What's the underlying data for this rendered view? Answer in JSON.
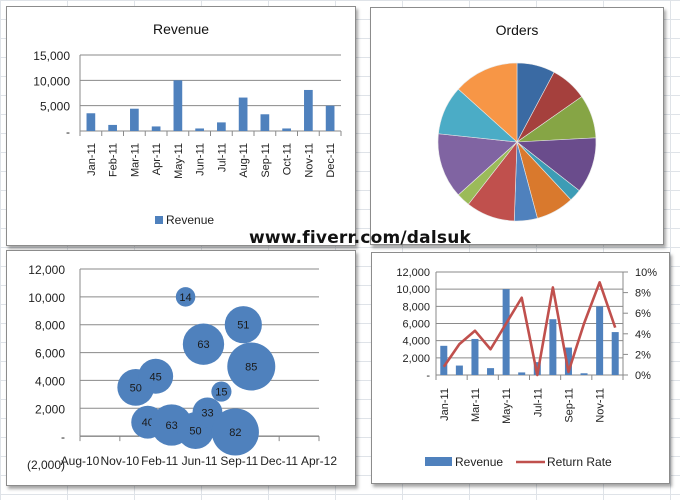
{
  "watermark": "www.fiverr.com/dalsuk",
  "colors": {
    "bar": "#4f81bd",
    "line": "#c0504d",
    "grid": "#8a8a8a"
  },
  "chart_data": [
    {
      "id": "revenue",
      "type": "bar",
      "title": "Revenue",
      "categories": [
        "Jan-11",
        "Feb-11",
        "Mar-11",
        "Apr-11",
        "May-11",
        "Jun-11",
        "Jul-11",
        "Aug-11",
        "Sep-11",
        "Oct-11",
        "Nov-11",
        "Dec-11"
      ],
      "series": [
        {
          "name": "Revenue",
          "values": [
            3500,
            1200,
            4400,
            900,
            10000,
            500,
            1700,
            6600,
            3300,
            500,
            8100,
            5000
          ]
        }
      ],
      "ylim": [
        0,
        15000
      ],
      "yticks": [
        "-",
        "5,000",
        "10,000",
        "15,000"
      ],
      "xlabel": "",
      "ylabel": "",
      "grid": true,
      "legend": {
        "position": "bottom",
        "entries": [
          "Revenue"
        ]
      }
    },
    {
      "id": "orders",
      "type": "pie",
      "title": "Orders",
      "slices": [
        {
          "value": 28,
          "color": "#3a6aa3"
        },
        {
          "value": 27,
          "color": "#a5403d"
        },
        {
          "value": 32,
          "color": "#86a545"
        },
        {
          "value": 41,
          "color": "#6a4c8c"
        },
        {
          "value": 9,
          "color": "#3d9cb5"
        },
        {
          "value": 28,
          "color": "#d9792d"
        },
        {
          "value": 17,
          "color": "#4f81bd"
        },
        {
          "value": 36,
          "color": "#c0504d"
        },
        {
          "value": 10,
          "color": "#9bbb59"
        },
        {
          "value": 48,
          "color": "#8064a2"
        },
        {
          "value": 36,
          "color": "#4bacc6"
        },
        {
          "value": 48,
          "color": "#f79646"
        }
      ],
      "legend": null
    },
    {
      "id": "bubble",
      "type": "scatter",
      "subtype": "bubble",
      "title": "",
      "xticks": [
        "Aug-10",
        "Nov-10",
        "Feb-11",
        "Jun-11",
        "Sep-11",
        "Dec-11",
        "Apr-12"
      ],
      "yticks": [
        "(2,000)",
        "-",
        "2,000",
        "4,000",
        "6,000",
        "8,000",
        "10,000",
        "12,000"
      ],
      "ylim": [
        -2000,
        12000
      ],
      "points": [
        {
          "x": 1.4,
          "y": 3500,
          "size": 50
        },
        {
          "x": 1.9,
          "y": 4300,
          "size": 45
        },
        {
          "x": 1.7,
          "y": 1000,
          "size": 40
        },
        {
          "x": 2.3,
          "y": 800,
          "size": 63
        },
        {
          "x": 2.65,
          "y": 10000,
          "size": 14
        },
        {
          "x": 2.9,
          "y": 400,
          "size": 50
        },
        {
          "x": 3.2,
          "y": 1700,
          "size": 33
        },
        {
          "x": 3.1,
          "y": 6600,
          "size": 63
        },
        {
          "x": 3.55,
          "y": 3200,
          "size": 15
        },
        {
          "x": 3.9,
          "y": 300,
          "size": 82
        },
        {
          "x": 4.1,
          "y": 8000,
          "size": 51
        },
        {
          "x": 4.3,
          "y": 5000,
          "size": 85
        }
      ],
      "grid": true
    },
    {
      "id": "combo",
      "type": "bar",
      "subtype": "bar+line",
      "title": "",
      "categories": [
        "Jan-11",
        "Feb-11",
        "Mar-11",
        "Apr-11",
        "May-11",
        "Jun-11",
        "Jul-11",
        "Aug-11",
        "Sep-11",
        "Oct-11",
        "Nov-11",
        "Dec-11"
      ],
      "xtick_labels_shown": [
        "Jan-11",
        "Mar-11",
        "May-11",
        "Jul-11",
        "Sep-11",
        "Nov-11"
      ],
      "series": [
        {
          "name": "Revenue",
          "type": "bar",
          "axis": "left",
          "values": [
            3400,
            1100,
            4200,
            800,
            10000,
            300,
            1500,
            6500,
            3200,
            200,
            8000,
            5000
          ]
        },
        {
          "name": "Return Rate",
          "type": "line",
          "axis": "right",
          "values": [
            0.8,
            3.0,
            4.3,
            2.5,
            5.0,
            7.5,
            0.0,
            8.5,
            0.3,
            5.0,
            9.0,
            4.6
          ]
        }
      ],
      "ylim": [
        0,
        12000
      ],
      "y2lim": [
        0,
        10
      ],
      "yticks": [
        "-",
        "2,000",
        "4,000",
        "6,000",
        "8,000",
        "10,000",
        "12,000"
      ],
      "y2ticks": [
        "0%",
        "2%",
        "4%",
        "6%",
        "8%",
        "10%"
      ],
      "grid": true,
      "legend": {
        "position": "bottom",
        "entries": [
          "Revenue",
          "Return Rate"
        ]
      }
    }
  ]
}
